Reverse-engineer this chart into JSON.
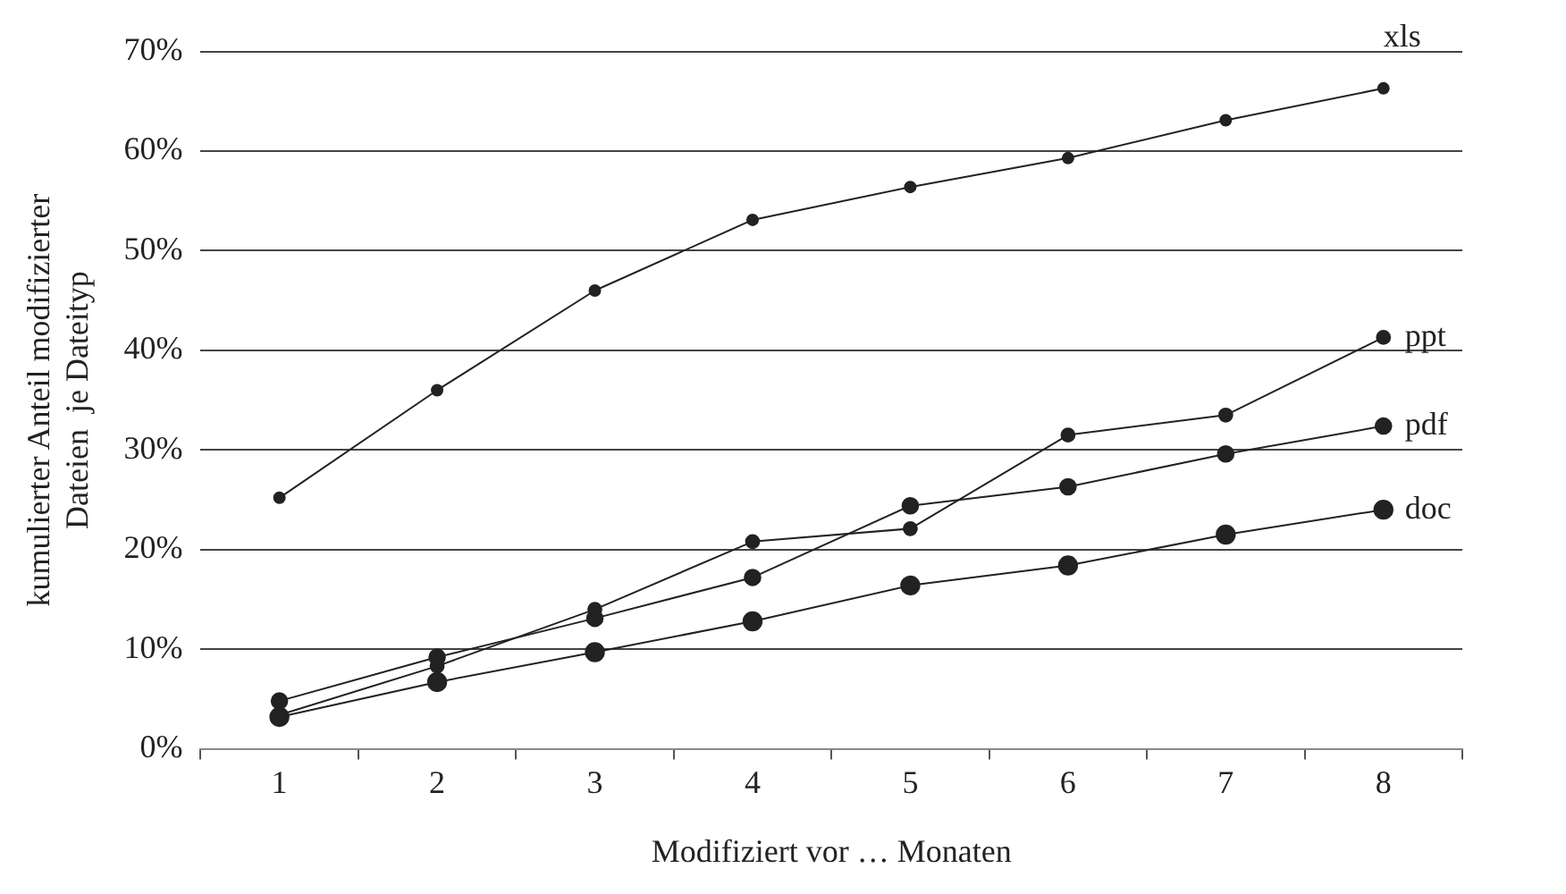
{
  "chart_data": {
    "type": "line",
    "xlabel": "Modifiziert vor … Monaten",
    "ylabel": "kumulierter Anteil modifizierter\nDateien  je Dateityp",
    "categories": [
      "1",
      "2",
      "3",
      "4",
      "5",
      "6",
      "7",
      "8"
    ],
    "series": [
      {
        "name": "xls",
        "color": "#222222",
        "values": [
          25.2,
          36,
          46,
          53.1,
          56.4,
          59.3,
          63.1,
          66.3
        ]
      },
      {
        "name": "ppt",
        "color": "#222222",
        "values": [
          3.4,
          8.3,
          14.0,
          20.8,
          22.1,
          31.5,
          33.5,
          41.3
        ]
      },
      {
        "name": "pdf",
        "color": "#222222",
        "values": [
          4.8,
          9.2,
          13.1,
          17.2,
          24.4,
          26.3,
          29.6,
          32.4
        ]
      },
      {
        "name": "doc",
        "color": "#222222",
        "values": [
          3.2,
          6.7,
          9.7,
          12.8,
          16.4,
          18.4,
          21.5,
          24.0
        ]
      }
    ],
    "ylim": [
      0,
      70
    ],
    "yticks": [
      {
        "value": 0,
        "label": "0%"
      },
      {
        "value": 10,
        "label": "10%"
      },
      {
        "value": 20,
        "label": "20%"
      },
      {
        "value": 30,
        "label": "30%"
      },
      {
        "value": 40,
        "label": "40%"
      },
      {
        "value": 50,
        "label": "50%"
      },
      {
        "value": 60,
        "label": "60%"
      },
      {
        "value": 70,
        "label": "70%"
      }
    ],
    "grid": "y",
    "legend": false,
    "marker": "circle",
    "line_style": "solid"
  }
}
